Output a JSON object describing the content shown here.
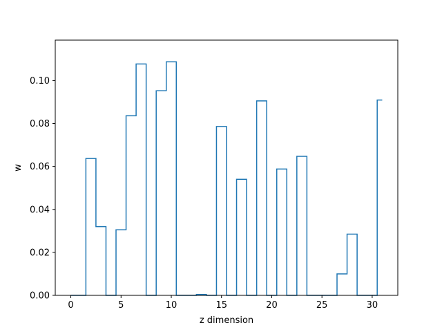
{
  "chart_data": {
    "type": "line",
    "drawstyle": "steps-mid",
    "title": "",
    "xlabel": "z dimension",
    "ylabel": "w",
    "xlim": [
      -1.55,
      32.55
    ],
    "ylim": [
      0,
      0.1188
    ],
    "x_ticks": [
      0,
      5,
      10,
      15,
      20,
      25,
      30
    ],
    "x_tick_labels": [
      "0",
      "5",
      "10",
      "15",
      "20",
      "25",
      "30"
    ],
    "y_ticks": [
      0,
      0.02,
      0.04,
      0.06,
      0.08,
      0.1
    ],
    "y_tick_labels": [
      "0.00",
      "0.02",
      "0.04",
      "0.06",
      "0.08",
      "0.10"
    ],
    "grid": false,
    "legend": false,
    "series": [
      {
        "color": "#1f77b4",
        "x": [
          0,
          1,
          2,
          3,
          4,
          5,
          6,
          7,
          8,
          9,
          10,
          11,
          12,
          13,
          14,
          15,
          16,
          17,
          18,
          19,
          20,
          21,
          22,
          23,
          24,
          25,
          26,
          27,
          28,
          29,
          30,
          31
        ],
        "y": [
          0,
          0,
          0.0637,
          0.032,
          0,
          0.0305,
          0.0836,
          0.1077,
          0,
          0.0952,
          0.1087,
          0,
          0,
          0.0004,
          0,
          0.0786,
          0,
          0.054,
          0,
          0.0905,
          0,
          0.0588,
          0,
          0.0647,
          0,
          0,
          0,
          0.01,
          0.0285,
          0,
          0,
          0.0909
        ]
      }
    ]
  }
}
